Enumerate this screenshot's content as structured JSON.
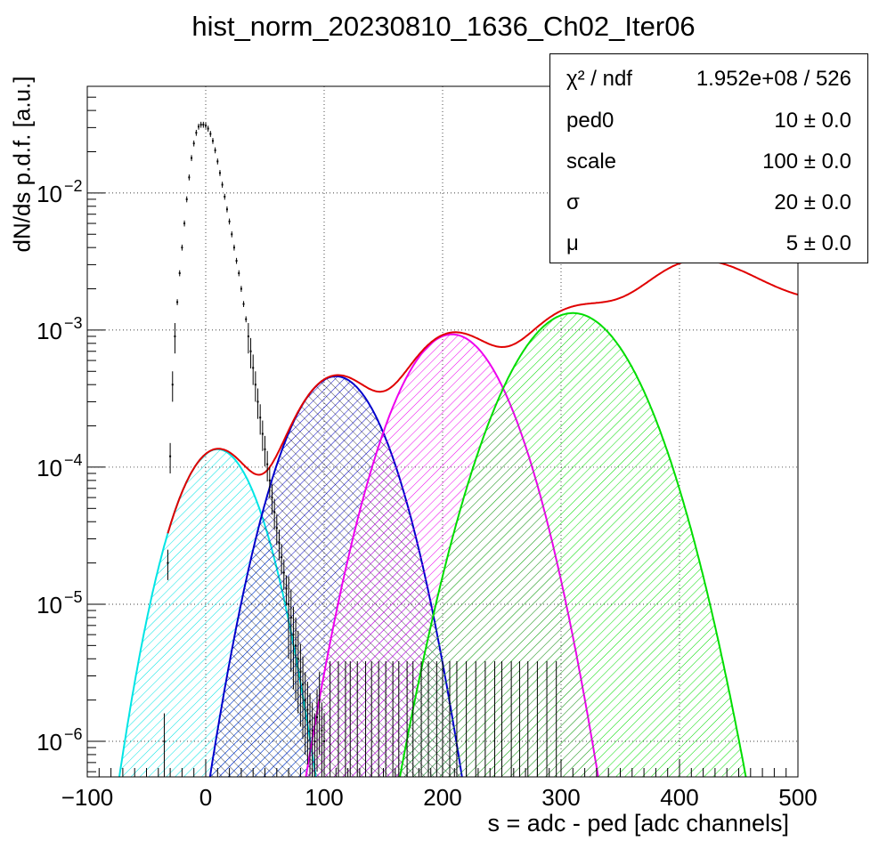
{
  "title": "hist_norm_20230810_1636_Ch02_Iter06",
  "stats": [
    {
      "name": "χ² / ndf",
      "value": "1.952e+08 / 526"
    },
    {
      "name": "ped0",
      "value": "10 ± 0.0"
    },
    {
      "name": "scale",
      "value": "100 ± 0.0"
    },
    {
      "name": "σ",
      "value": "20 ± 0.0"
    },
    {
      "name": "μ",
      "value": "5 ± 0.0"
    }
  ],
  "chart_data": {
    "type": "line",
    "title": "hist_norm_20230810_1636_Ch02_Iter06",
    "xlabel": "s = adc - ped [adc channels]",
    "ylabel": "dN/ds p.d.f. [a.u.]",
    "xlim": [
      -100,
      500
    ],
    "ylim": [
      5.5e-07,
      0.06
    ],
    "yscale": "log",
    "grid": true,
    "x_ticks": [
      "−100",
      "0",
      "100",
      "200",
      "300",
      "400",
      "500"
    ],
    "y_ticks": [
      {
        "base": "10",
        "exp": "−2",
        "value": 0.01
      },
      {
        "base": "10",
        "exp": "−3",
        "value": 0.001
      },
      {
        "base": "10",
        "exp": "−4",
        "value": 0.0001
      },
      {
        "base": "10",
        "exp": "−5",
        "value": 1e-05
      },
      {
        "base": "10",
        "exp": "−6",
        "value": 1e-06
      }
    ],
    "components": [
      {
        "color": "#00e5e5",
        "peak_x": 10,
        "peak_y": 0.000135,
        "sigma": 25
      },
      {
        "color": "#0000cc",
        "peak_x": 110,
        "peak_y": 0.00046,
        "sigma": 29
      },
      {
        "color": "#ee00ee",
        "peak_x": 208,
        "peak_y": 0.00093,
        "sigma": 32
      },
      {
        "color": "#00dd00",
        "peak_x": 310,
        "peak_y": 0.00133,
        "sigma": 37
      }
    ],
    "fit_color": "#e00000",
    "histogram": {
      "x": [
        -35,
        -32,
        -30,
        -28,
        -26,
        -24,
        -22,
        -20,
        -18,
        -16,
        -14,
        -12,
        -10,
        -8,
        -6,
        -4,
        -2,
        0,
        2,
        4,
        6,
        8,
        10,
        12,
        14,
        16,
        18,
        20,
        22,
        24,
        26,
        28,
        30,
        32,
        34,
        36,
        38,
        40,
        42,
        44,
        46,
        48,
        50,
        52,
        54,
        56,
        58,
        60,
        62,
        64,
        66,
        68,
        70,
        72,
        74,
        76,
        78,
        80,
        82,
        84,
        86,
        88,
        90,
        92,
        94,
        96,
        98,
        100
      ],
      "y": [
        1e-06,
        2e-05,
        0.00012,
        0.0004,
        0.0009,
        0.0016,
        0.0026,
        0.004,
        0.006,
        0.009,
        0.013,
        0.018,
        0.023,
        0.0275,
        0.0305,
        0.0315,
        0.0315,
        0.031,
        0.0295,
        0.027,
        0.024,
        0.0205,
        0.017,
        0.014,
        0.0115,
        0.0094,
        0.0076,
        0.0062,
        0.005,
        0.004,
        0.0032,
        0.0026,
        0.002,
        0.00155,
        0.0012,
        0.0009,
        0.0007,
        0.00053,
        0.0004,
        0.0003,
        0.00023,
        0.000175,
        0.000135,
        0.000105,
        8e-05,
        6e-05,
        4.7e-05,
        3.6e-05,
        2.8e-05,
        2.2e-05,
        1.7e-05,
        1.3e-05,
        1e-05,
        8e-06,
        6e-06,
        5e-06,
        4e-06,
        3.2e-06,
        2.6e-06,
        2e-06,
        1.7e-06,
        1.4e-06,
        1.2e-06,
        1e-06,
        1.5e-06,
        2e-06,
        1.2e-06,
        1e-06
      ]
    },
    "sparse_bins_x": [
      105,
      112,
      118,
      122,
      128,
      135,
      140,
      146,
      152,
      158,
      163,
      170,
      175,
      182,
      188,
      195,
      200,
      206,
      212,
      220,
      228,
      236,
      244,
      250,
      258,
      265,
      272,
      280,
      288,
      296
    ]
  }
}
